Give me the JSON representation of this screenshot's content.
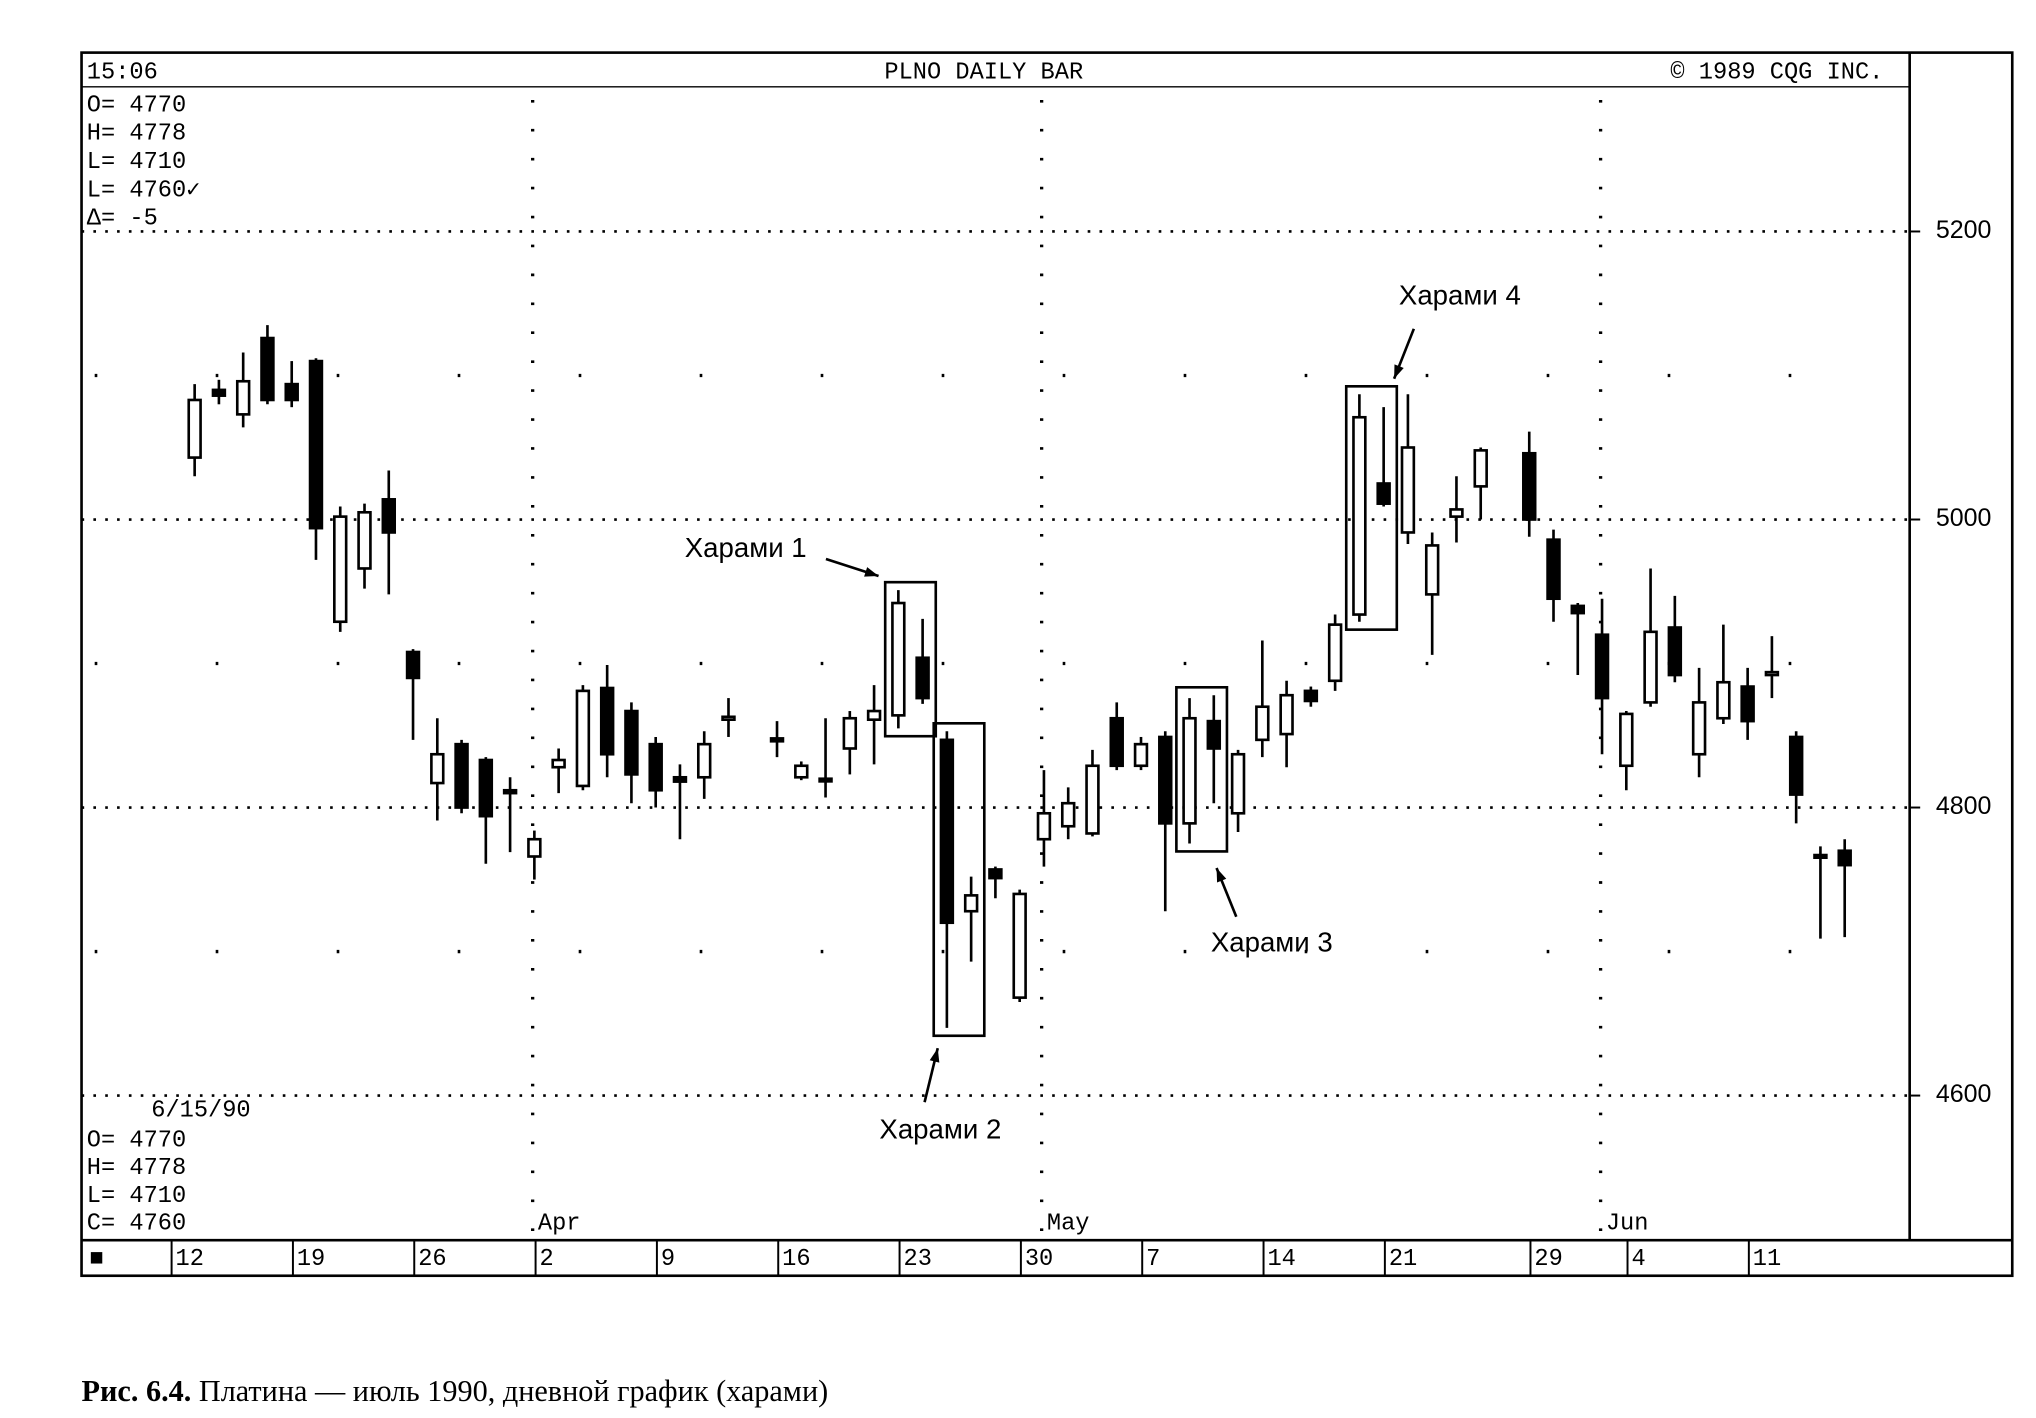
{
  "chart_data": {
    "type": "candlestick",
    "title": "PLNO DAILY BAR",
    "time": "15:06",
    "copyright": "© 1989 CQG INC.",
    "readout_top": [
      "O= 4770",
      "H= 4778",
      "L= 4710",
      "L= 4760✓",
      "Δ=   -5"
    ],
    "readout_bottom": {
      "date": "6/15/90",
      "lines": [
        "O= 4770",
        "H= 4778",
        "L= 4710",
        "C= 4760"
      ]
    },
    "axis_marker": "■",
    "months": [
      "Apr",
      "May",
      "Jun"
    ],
    "categories": [
      "12",
      null,
      null,
      null,
      null,
      "19",
      null,
      null,
      null,
      null,
      "26",
      null,
      null,
      null,
      null,
      "2",
      null,
      null,
      null,
      null,
      "9",
      null,
      null,
      null,
      null,
      "16",
      null,
      null,
      null,
      null,
      "23",
      null,
      null,
      null,
      null,
      "30",
      null,
      null,
      null,
      null,
      "7",
      null,
      null,
      null,
      null,
      "14",
      null,
      null,
      null,
      null,
      "21",
      null,
      null,
      null,
      null,
      null,
      "29",
      null,
      null,
      null,
      "4",
      null,
      null,
      null,
      null,
      "11",
      null,
      null,
      null
    ],
    "open": [
      5043,
      5090,
      5073,
      5126,
      5094,
      5110,
      4929,
      4966,
      5014,
      4908,
      4817,
      4844,
      4833,
      4812,
      4766,
      4828,
      4815,
      4883,
      4867,
      4844,
      4821,
      4821,
      4861,
      null,
      4848,
      4821,
      4820,
      4841,
      4861,
      4864,
      4904,
      4847,
      4728,
      4757,
      4668,
      4778,
      4787,
      4782,
      4862,
      4829,
      4849,
      4789,
      4860,
      4796,
      4847,
      4851,
      4881,
      4888,
      4934,
      5025,
      4991,
      4948,
      5002,
      5023,
      null,
      5046,
      4986,
      4940,
      4920,
      4829,
      4873,
      4925,
      4837,
      4862,
      4884,
      4892,
      4849,
      4767,
      4770
    ],
    "high": [
      5094,
      5097,
      5116,
      5135,
      5110,
      5112,
      5009,
      5011,
      5034,
      4910,
      4862,
      4847,
      4835,
      4821,
      4784,
      4841,
      4885,
      4899,
      4873,
      4849,
      4830,
      4853,
      4876,
      null,
      4860,
      4832,
      4862,
      4867,
      4885,
      4951,
      4931,
      4853,
      4752,
      4759,
      4743,
      4826,
      4814,
      4840,
      4873,
      4849,
      4853,
      4876,
      4878,
      4840,
      4916,
      4888,
      4884,
      4934,
      5087,
      5078,
      5087,
      4991,
      5030,
      5050,
      null,
      5061,
      4993,
      4942,
      4945,
      4867,
      4966,
      4947,
      4897,
      4927,
      4897,
      4919,
      4853,
      4773,
      4778
    ],
    "low": [
      5030,
      5080,
      5064,
      5080,
      5078,
      4972,
      4922,
      4952,
      4948,
      4847,
      4791,
      4796,
      4761,
      4769,
      4750,
      4810,
      4812,
      4821,
      4803,
      4800,
      4778,
      4806,
      4849,
      null,
      4835,
      4819,
      4807,
      4823,
      4830,
      4855,
      4872,
      4647,
      4693,
      4737,
      4665,
      4759,
      4778,
      4780,
      4826,
      4826,
      4728,
      4775,
      4803,
      4783,
      4835,
      4828,
      4870,
      4881,
      4929,
      5009,
      4983,
      4906,
      4984,
      5000,
      null,
      4988,
      4929,
      4892,
      4837,
      4812,
      4870,
      4887,
      4821,
      4858,
      4847,
      4876,
      4789,
      4709,
      4710
    ],
    "close": [
      5083,
      5086,
      5096,
      5083,
      5083,
      4994,
      5002,
      5005,
      4991,
      4890,
      4837,
      4800,
      4794,
      4810,
      4778,
      4833,
      4881,
      4837,
      4823,
      4812,
      4818,
      4844,
      4863,
      null,
      4846,
      4829,
      4819,
      4862,
      4867,
      4942,
      4876,
      4720,
      4739,
      4751,
      4740,
      4796,
      4803,
      4829,
      4829,
      4844,
      4789,
      4862,
      4841,
      4837,
      4870,
      4878,
      4874,
      4927,
      5071,
      5011,
      5050,
      4982,
      5007,
      5048,
      null,
      5000,
      4945,
      4935,
      4876,
      4865,
      4922,
      4892,
      4873,
      4887,
      4860,
      4894,
      4809,
      4766,
      4760
    ],
    "ylim": [
      4500,
      5300
    ],
    "yticks": [
      4600,
      4800,
      5000,
      5200
    ],
    "grid": true,
    "color": "#000000",
    "annotations": [
      "Харами 1",
      "Харами 2",
      "Харами 3",
      "Харами 4"
    ]
  },
  "caption": {
    "label": "Рис. 6.4.",
    "text": "Платина — июль 1990, дневной график (харами)"
  }
}
